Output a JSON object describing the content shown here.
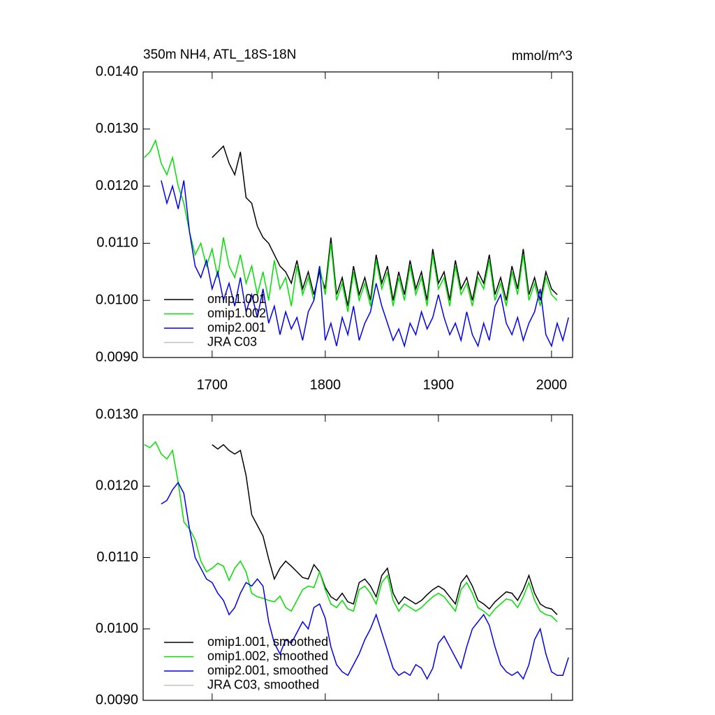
{
  "chart_data": [
    {
      "type": "line",
      "title": "350m NH4, ATL_18S-18N",
      "units": "mmol/m^3",
      "x": [
        1640,
        1645,
        1650,
        1655,
        1660,
        1665,
        1670,
        1675,
        1680,
        1685,
        1690,
        1695,
        1700,
        1705,
        1710,
        1715,
        1720,
        1725,
        1730,
        1735,
        1740,
        1745,
        1750,
        1755,
        1760,
        1765,
        1770,
        1775,
        1780,
        1785,
        1790,
        1795,
        1800,
        1805,
        1810,
        1815,
        1820,
        1825,
        1830,
        1835,
        1840,
        1845,
        1850,
        1855,
        1860,
        1865,
        1870,
        1875,
        1880,
        1885,
        1890,
        1895,
        1900,
        1905,
        1910,
        1915,
        1920,
        1925,
        1930,
        1935,
        1940,
        1945,
        1950,
        1955,
        1960,
        1965,
        1970,
        1975,
        1980,
        1985,
        1990,
        1995,
        2000,
        2005,
        2010,
        2015
      ],
      "xlim": [
        1639,
        2018.6
      ],
      "xticks": [
        1700,
        1800,
        1900,
        2000
      ],
      "ylim": [
        0.009,
        0.014
      ],
      "yticks": [
        {
          "value": 0.009,
          "label": "0.0090"
        },
        {
          "value": 0.01,
          "label": "0.0100"
        },
        {
          "value": 0.011,
          "label": "0.0110"
        },
        {
          "value": 0.012,
          "label": "0.0120"
        },
        {
          "value": 0.013,
          "label": "0.0130"
        },
        {
          "value": 0.014,
          "label": "0.0140"
        }
      ],
      "legend": "lower left",
      "series": [
        {
          "name": "omip1.001",
          "color": "#000000",
          "values": [
            null,
            null,
            null,
            null,
            null,
            null,
            null,
            null,
            null,
            null,
            null,
            null,
            0.0125,
            0.0126,
            0.0127,
            0.0124,
            0.0122,
            0.0126,
            0.0118,
            0.0117,
            0.0113,
            0.0111,
            0.011,
            0.0108,
            0.0106,
            0.0105,
            0.0103,
            0.0107,
            0.0102,
            0.0105,
            0.0101,
            0.0105,
            0.0102,
            0.0111,
            0.0101,
            0.0104,
            0.0099,
            0.0106,
            0.0101,
            0.0104,
            0.01,
            0.0108,
            0.0103,
            0.0106,
            0.01,
            0.0105,
            0.0101,
            0.0107,
            0.0102,
            0.0105,
            0.01,
            0.0109,
            0.0103,
            0.0105,
            0.01,
            0.0107,
            0.0102,
            0.0104,
            0.01,
            0.0105,
            0.0103,
            0.0108,
            0.0101,
            0.0104,
            0.01,
            0.0106,
            0.0102,
            0.0109,
            0.0101,
            0.0104,
            0.01,
            0.0105,
            0.0102,
            0.0101,
            null,
            null
          ]
        },
        {
          "name": "omip1.002",
          "color": "#00e000",
          "values": [
            0.0125,
            0.0126,
            0.0128,
            0.0124,
            0.0122,
            0.0125,
            0.012,
            0.0117,
            0.0112,
            0.0108,
            0.011,
            0.0106,
            0.0109,
            0.0104,
            0.0111,
            0.0106,
            0.0104,
            0.0108,
            0.0103,
            0.0106,
            0.0101,
            0.0105,
            0.01,
            0.0107,
            0.0102,
            0.0104,
            0.0099,
            0.0106,
            0.0101,
            0.0104,
            0.01,
            0.0106,
            0.0101,
            0.011,
            0.01,
            0.0103,
            0.0098,
            0.0105,
            0.01,
            0.0103,
            0.0099,
            0.0107,
            0.0102,
            0.0105,
            0.0099,
            0.0104,
            0.01,
            0.0106,
            0.0101,
            0.0104,
            0.0099,
            0.0108,
            0.0102,
            0.0104,
            0.0099,
            0.0106,
            0.0101,
            0.0103,
            0.0099,
            0.0104,
            0.0102,
            0.0107,
            0.01,
            0.0103,
            0.0099,
            0.0105,
            0.0101,
            0.0108,
            0.01,
            0.0103,
            0.0099,
            0.0104,
            0.0101,
            0.01,
            null,
            null
          ]
        },
        {
          "name": "omip2.001",
          "color": "#0000ee",
          "values": [
            null,
            null,
            null,
            0.0121,
            0.0117,
            0.012,
            0.0116,
            0.0121,
            0.0112,
            0.0106,
            0.0104,
            0.0107,
            0.0102,
            0.0105,
            0.01,
            0.0103,
            0.0099,
            0.0104,
            0.0098,
            0.0101,
            0.0097,
            0.0102,
            0.0096,
            0.0099,
            0.0094,
            0.0098,
            0.0095,
            0.0097,
            0.0093,
            0.0098,
            0.01,
            0.0106,
            0.0093,
            0.0096,
            0.0092,
            0.0097,
            0.0094,
            0.0099,
            0.0093,
            0.0096,
            0.0098,
            0.0103,
            0.0099,
            0.0096,
            0.0093,
            0.0095,
            0.0092,
            0.0096,
            0.0094,
            0.0098,
            0.0095,
            0.0097,
            0.0101,
            0.0097,
            0.0094,
            0.0096,
            0.0093,
            0.0098,
            0.0094,
            0.0092,
            0.0096,
            0.0093,
            0.0099,
            0.0101,
            0.0096,
            0.0094,
            0.0097,
            0.0093,
            0.0096,
            0.0098,
            0.0102,
            0.0094,
            0.0092,
            0.0096,
            0.0093,
            0.0097
          ]
        },
        {
          "name": "JRA C03",
          "color": "#c0c0c0",
          "values": [
            null,
            null,
            null,
            null,
            null,
            null,
            null,
            null,
            null,
            null,
            null,
            null,
            null,
            null,
            null,
            null,
            null,
            null,
            null,
            null,
            null,
            null,
            null,
            null,
            null,
            null,
            null,
            null,
            null,
            null,
            null,
            null,
            null,
            null,
            null,
            null,
            null,
            null,
            null,
            null,
            null,
            null,
            null,
            null,
            null,
            null,
            null,
            null,
            null,
            null,
            null,
            null,
            null,
            null,
            null,
            null,
            null,
            null,
            null,
            null,
            null,
            null,
            null,
            null,
            null,
            null,
            null,
            null,
            null,
            null,
            null,
            null,
            null,
            null,
            null,
            null
          ]
        }
      ]
    },
    {
      "type": "line",
      "x": [
        1640,
        1645,
        1650,
        1655,
        1660,
        1665,
        1670,
        1675,
        1680,
        1685,
        1690,
        1695,
        1700,
        1705,
        1710,
        1715,
        1720,
        1725,
        1730,
        1735,
        1740,
        1745,
        1750,
        1755,
        1760,
        1765,
        1770,
        1775,
        1780,
        1785,
        1790,
        1795,
        1800,
        1805,
        1810,
        1815,
        1820,
        1825,
        1830,
        1835,
        1840,
        1845,
        1850,
        1855,
        1860,
        1865,
        1870,
        1875,
        1880,
        1885,
        1890,
        1895,
        1900,
        1905,
        1910,
        1915,
        1920,
        1925,
        1930,
        1935,
        1940,
        1945,
        1950,
        1955,
        1960,
        1965,
        1970,
        1975,
        1980,
        1985,
        1990,
        1995,
        2000,
        2005,
        2010,
        2015
      ],
      "xlim": [
        1639,
        2018.6
      ],
      "xticks": [
        1700,
        1800,
        1900,
        2000
      ],
      "ylim": [
        0.009,
        0.013
      ],
      "yticks": [
        {
          "value": 0.009,
          "label": "0.0090"
        },
        {
          "value": 0.01,
          "label": "0.0100"
        },
        {
          "value": 0.011,
          "label": "0.0110"
        },
        {
          "value": 0.012,
          "label": "0.0120"
        },
        {
          "value": 0.013,
          "label": "0.0130"
        }
      ],
      "legend": "lower left",
      "series": [
        {
          "name": "omip1.001, smoothed",
          "color": "#000000",
          "values": [
            null,
            null,
            null,
            null,
            null,
            null,
            null,
            null,
            null,
            null,
            null,
            null,
            0.01258,
            0.01252,
            0.01258,
            0.0125,
            0.01245,
            0.0125,
            0.01215,
            0.0116,
            0.01145,
            0.0113,
            0.01098,
            0.0107,
            0.01085,
            0.01095,
            0.01088,
            0.0108,
            0.01072,
            0.0107,
            0.0109,
            0.0108,
            0.01058,
            0.01045,
            0.0104,
            0.0105,
            0.01038,
            0.01035,
            0.01065,
            0.0107,
            0.0106,
            0.01045,
            0.01075,
            0.01085,
            0.0105,
            0.01035,
            0.01045,
            0.0104,
            0.01035,
            0.0104,
            0.01048,
            0.01055,
            0.0106,
            0.01055,
            0.01045,
            0.01035,
            0.01065,
            0.01075,
            0.0106,
            0.0104,
            0.01035,
            0.01028,
            0.01038,
            0.01045,
            0.01052,
            0.0105,
            0.0104,
            0.01055,
            0.01075,
            0.0105,
            0.01035,
            0.0103,
            0.01028,
            0.0102,
            null,
            null
          ]
        },
        {
          "name": "omip1.002, smoothed",
          "color": "#00e000",
          "values": [
            0.01258,
            0.01254,
            0.01262,
            0.01245,
            0.01238,
            0.0125,
            0.01205,
            0.0115,
            0.0114,
            0.01125,
            0.01095,
            0.0108,
            0.01085,
            0.01092,
            0.01088,
            0.01068,
            0.01085,
            0.01095,
            0.0108,
            0.0105,
            0.01045,
            0.01043,
            0.0104,
            0.01038,
            0.01046,
            0.0103,
            0.01025,
            0.0104,
            0.01055,
            0.0106,
            0.01058,
            0.0108,
            0.01055,
            0.01035,
            0.0103,
            0.0104,
            0.01028,
            0.01025,
            0.01055,
            0.0106,
            0.0105,
            0.01035,
            0.01065,
            0.01075,
            0.0104,
            0.01025,
            0.01035,
            0.0103,
            0.01025,
            0.0103,
            0.01038,
            0.01045,
            0.0105,
            0.01045,
            0.01035,
            0.01025,
            0.01055,
            0.01065,
            0.0105,
            0.0103,
            0.01025,
            0.01018,
            0.01028,
            0.01035,
            0.01042,
            0.0104,
            0.0103,
            0.01045,
            0.01065,
            0.0104,
            0.01025,
            0.0102,
            0.01018,
            0.0101,
            null,
            null
          ]
        },
        {
          "name": "omip2.001, smoothed",
          "color": "#0000ee",
          "values": [
            null,
            null,
            null,
            0.01175,
            0.0118,
            0.01195,
            0.01205,
            0.0119,
            0.0114,
            0.011,
            0.01085,
            0.0107,
            0.01065,
            0.0105,
            0.0104,
            0.0102,
            0.0103,
            0.0105,
            0.01065,
            0.0106,
            0.0107,
            0.0106,
            0.0101,
            0.0098,
            0.00965,
            0.00985,
            0.0098,
            0.00995,
            0.0101,
            0.01,
            0.0103,
            0.01035,
            0.01015,
            0.00975,
            0.0095,
            0.0094,
            0.00935,
            0.0095,
            0.00965,
            0.00985,
            0.01,
            0.0102,
            0.00995,
            0.0097,
            0.00945,
            0.00935,
            0.0094,
            0.00935,
            0.0095,
            0.00945,
            0.0093,
            0.00945,
            0.0098,
            0.0099,
            0.00975,
            0.0096,
            0.00945,
            0.00975,
            0.01,
            0.0101,
            0.0102,
            0.01005,
            0.00975,
            0.0095,
            0.0094,
            0.00935,
            0.0094,
            0.0093,
            0.0095,
            0.00985,
            0.01,
            0.00965,
            0.0094,
            0.00935,
            0.00935,
            0.0096
          ]
        },
        {
          "name": "JRA C03, smoothed",
          "color": "#c0c0c0",
          "values": [
            null,
            null,
            null,
            null,
            null,
            null,
            null,
            null,
            null,
            null,
            null,
            null,
            null,
            null,
            null,
            null,
            null,
            null,
            null,
            null,
            null,
            null,
            null,
            null,
            null,
            null,
            null,
            null,
            null,
            null,
            null,
            null,
            null,
            null,
            null,
            null,
            null,
            null,
            null,
            null,
            null,
            null,
            null,
            null,
            null,
            null,
            null,
            null,
            null,
            null,
            null,
            null,
            null,
            null,
            null,
            null,
            null,
            null,
            null,
            null,
            null,
            null,
            null,
            null,
            null,
            null,
            null,
            null,
            null,
            null,
            null,
            null,
            null,
            null,
            null,
            null
          ]
        }
      ]
    }
  ]
}
